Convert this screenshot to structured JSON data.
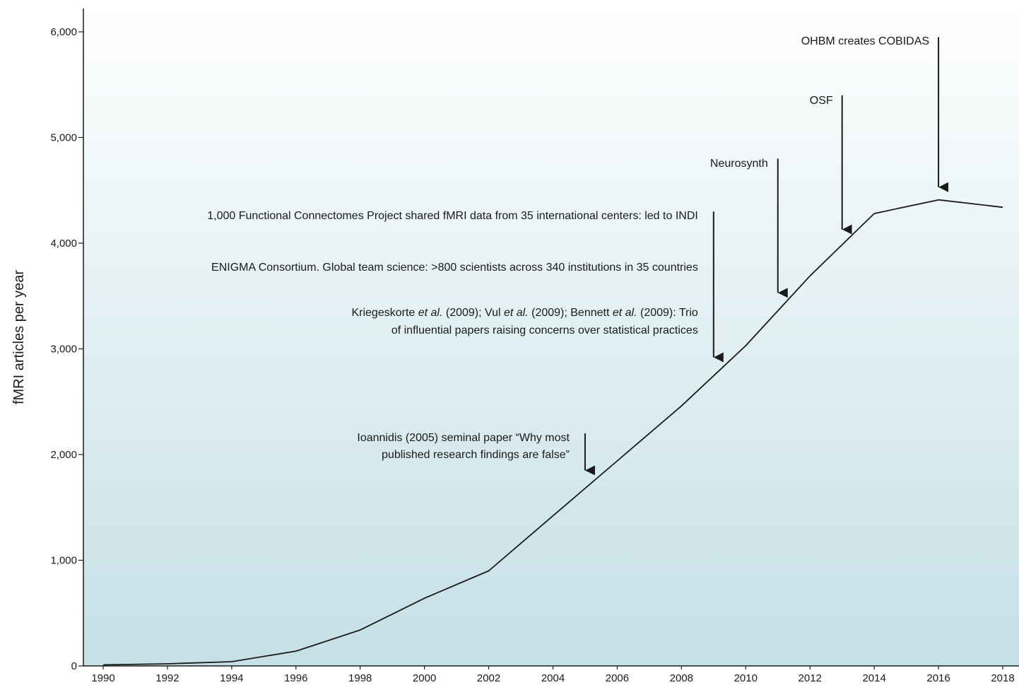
{
  "chart_data": {
    "type": "line",
    "title": "",
    "xlabel": "",
    "ylabel": "fMRI articles per year",
    "xlim": [
      1990,
      2018
    ],
    "ylim": [
      0,
      6000
    ],
    "x_ticks": [
      "1990",
      "1992",
      "1994",
      "1996",
      "1998",
      "2000",
      "2002",
      "2004",
      "2006",
      "2008",
      "2010",
      "2012",
      "2014",
      "2016",
      "2018"
    ],
    "y_ticks": [
      {
        "value": 0,
        "label": "0"
      },
      {
        "value": 1000,
        "label": "1,000"
      },
      {
        "value": 2000,
        "label": "2,000"
      },
      {
        "value": 3000,
        "label": "3,000"
      },
      {
        "value": 4000,
        "label": "4,000"
      },
      {
        "value": 5000,
        "label": "5,000"
      },
      {
        "value": 6000,
        "label": "6,000"
      }
    ],
    "grid": false,
    "background_gradient": [
      "#ffffff",
      "#c5e0e6"
    ],
    "line_color": "#1a1a1a",
    "series": [
      {
        "x": [
          1990,
          1992,
          1994,
          1996,
          1998,
          2000,
          2002,
          2004,
          2006,
          2008,
          2010,
          2012,
          2014,
          2016,
          2018
        ],
        "values": [
          10,
          20,
          40,
          140,
          340,
          640,
          900,
          1420,
          1940,
          2460,
          3030,
          3690,
          4280,
          4410,
          4340
        ]
      }
    ],
    "annotations": [
      {
        "year": 2005,
        "arrow_top": 2200,
        "arrow_tip": 1850,
        "lines": [
          "Ioannidis (2005) seminal paper “Why most",
          "published research findings are false”"
        ]
      },
      {
        "year": 2009,
        "arrow_top": 4300,
        "arrow_tip": 2920,
        "lines": [
          "1,000 Functional Connectomes Project shared fMRI data from 35 international centers: led to INDI",
          "ENIGMA Consortium. Global team science: >800 scientists across 340 institutions in 35 countries",
          "Kriegeskorte et al. (2009); Vul et al. (2009); Bennett et al. (2009): Trio",
          "of influential papers raising concerns over statistical practices"
        ]
      },
      {
        "year": 2011,
        "arrow_top": 4800,
        "arrow_tip": 3530,
        "lines": [
          "Neurosynth"
        ]
      },
      {
        "year": 2013,
        "arrow_top": 5400,
        "arrow_tip": 4130,
        "lines": [
          "OSF"
        ]
      },
      {
        "year": 2016,
        "arrow_top": 5950,
        "arrow_tip": 4530,
        "lines": [
          "OHBM creates COBIDAS"
        ]
      }
    ]
  }
}
